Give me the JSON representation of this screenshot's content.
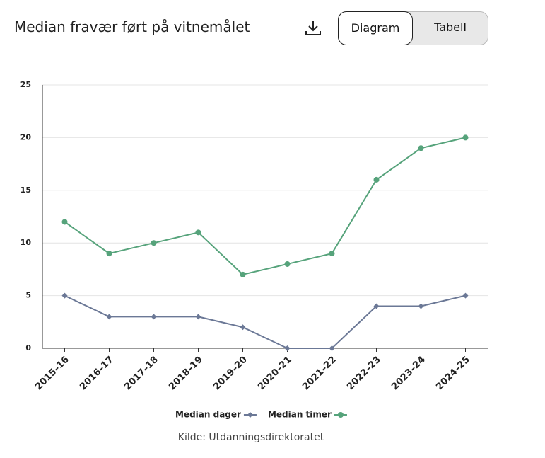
{
  "header": {
    "title": "Median fravær ført på vitnemålet"
  },
  "controls": {
    "diagram": "Diagram",
    "table": "Tabell"
  },
  "chart_data": {
    "type": "line",
    "categories": [
      "2015–16",
      "2016–17",
      "2017–18",
      "2018–19",
      "2019–20",
      "2020–21",
      "2021–22",
      "2022–23",
      "2023–24",
      "2024–25"
    ],
    "series": [
      {
        "name": "Median dager",
        "color": "#6b7896",
        "marker": "diamond",
        "values": [
          5,
          3,
          3,
          3,
          2,
          0,
          0,
          4,
          4,
          5
        ]
      },
      {
        "name": "Median timer",
        "color": "#56a37b",
        "marker": "circle",
        "values": [
          12,
          9,
          10,
          11,
          7,
          8,
          9,
          16,
          19,
          20
        ]
      }
    ],
    "ylim": [
      0,
      25
    ],
    "yticks": [
      0,
      5,
      10,
      15,
      20,
      25
    ],
    "grid": true,
    "legend": "bottom"
  },
  "source": "Kilde: Utdanningsdirektoratet"
}
